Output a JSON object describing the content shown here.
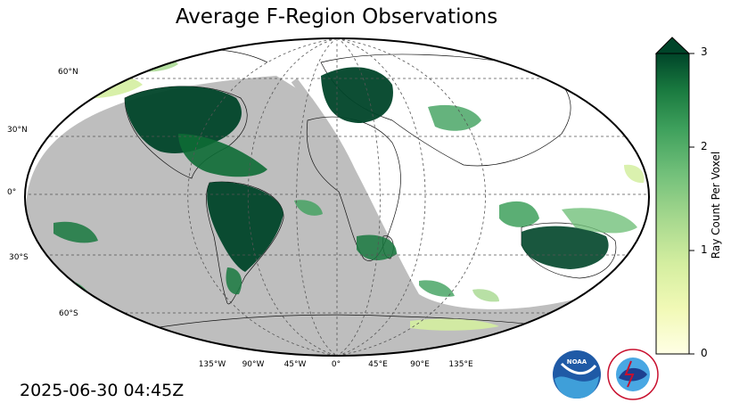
{
  "title": "Average F-Region Observations",
  "timestamp": "2025-06-30 04:45Z",
  "lat_labels": [
    "60°N",
    "30°N",
    "0°",
    "30°S",
    "60°S"
  ],
  "lon_labels": [
    "135°W",
    "90°W",
    "45°W",
    "0°",
    "45°E",
    "90°E",
    "135°E"
  ],
  "colorbar": {
    "label": "Ray Count Per Voxel",
    "ticks": [
      "0",
      "1",
      "2",
      "3"
    ],
    "min": 0,
    "max": 3,
    "extend": "max",
    "colormap": "YlGn"
  },
  "night_shade_color": "#bebebe",
  "logos": [
    "noaa-logo",
    "national-weather-service-logo"
  ]
}
